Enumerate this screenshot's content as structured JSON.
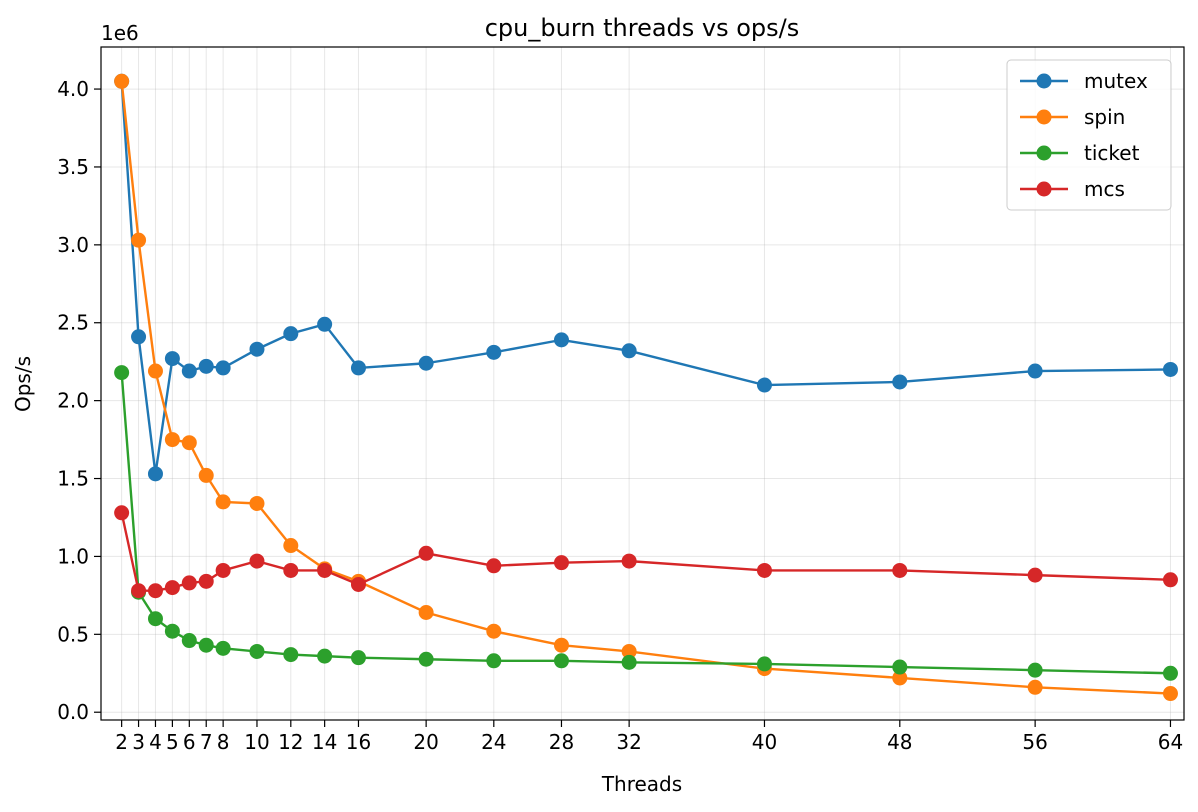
{
  "chart_data": {
    "type": "line",
    "title": "cpu_burn threads vs ops/s",
    "xlabel": "Threads",
    "ylabel": "Ops/s",
    "y_offset_label": "1e6",
    "x": [
      2,
      3,
      4,
      5,
      6,
      7,
      8,
      10,
      12,
      14,
      16,
      20,
      24,
      28,
      32,
      40,
      48,
      56,
      64
    ],
    "x_ticks": [
      2,
      3,
      4,
      5,
      6,
      7,
      8,
      10,
      12,
      14,
      16,
      20,
      24,
      28,
      32,
      40,
      48,
      56,
      64
    ],
    "y_ticks": [
      0.0,
      0.5,
      1.0,
      1.5,
      2.0,
      2.5,
      3.0,
      3.5,
      4.0
    ],
    "y_tick_labels": [
      "0.0",
      "0.5",
      "1.0",
      "1.5",
      "2.0",
      "2.5",
      "3.0",
      "3.5",
      "4.0"
    ],
    "xlim": [
      0.78,
      64.8
    ],
    "ylim": [
      -0.05,
      4.27
    ],
    "y_unit_scale": 1000000,
    "grid": true,
    "legend_position": "top-right",
    "series": [
      {
        "name": "mutex",
        "color": "#1f77b4",
        "values": [
          4.05,
          2.41,
          1.53,
          2.27,
          2.19,
          2.22,
          2.21,
          2.33,
          2.43,
          2.49,
          2.21,
          2.24,
          2.31,
          2.39,
          2.32,
          2.1,
          2.12,
          2.19,
          2.2
        ]
      },
      {
        "name": "spin",
        "color": "#ff7f0e",
        "values": [
          4.05,
          3.03,
          2.19,
          1.75,
          1.73,
          1.52,
          1.35,
          1.34,
          1.07,
          0.92,
          0.84,
          0.64,
          0.52,
          0.43,
          0.39,
          0.28,
          0.22,
          0.16,
          0.12
        ]
      },
      {
        "name": "ticket",
        "color": "#2ca02c",
        "values": [
          2.18,
          0.77,
          0.6,
          0.52,
          0.46,
          0.43,
          0.41,
          0.39,
          0.37,
          0.36,
          0.35,
          0.34,
          0.33,
          0.33,
          0.32,
          0.31,
          0.29,
          0.27,
          0.25
        ]
      },
      {
        "name": "mcs",
        "color": "#d62728",
        "values": [
          1.28,
          0.78,
          0.78,
          0.8,
          0.83,
          0.84,
          0.91,
          0.97,
          0.91,
          0.91,
          0.82,
          1.02,
          0.94,
          0.96,
          0.97,
          0.91,
          0.91,
          0.88,
          0.85
        ]
      }
    ]
  }
}
